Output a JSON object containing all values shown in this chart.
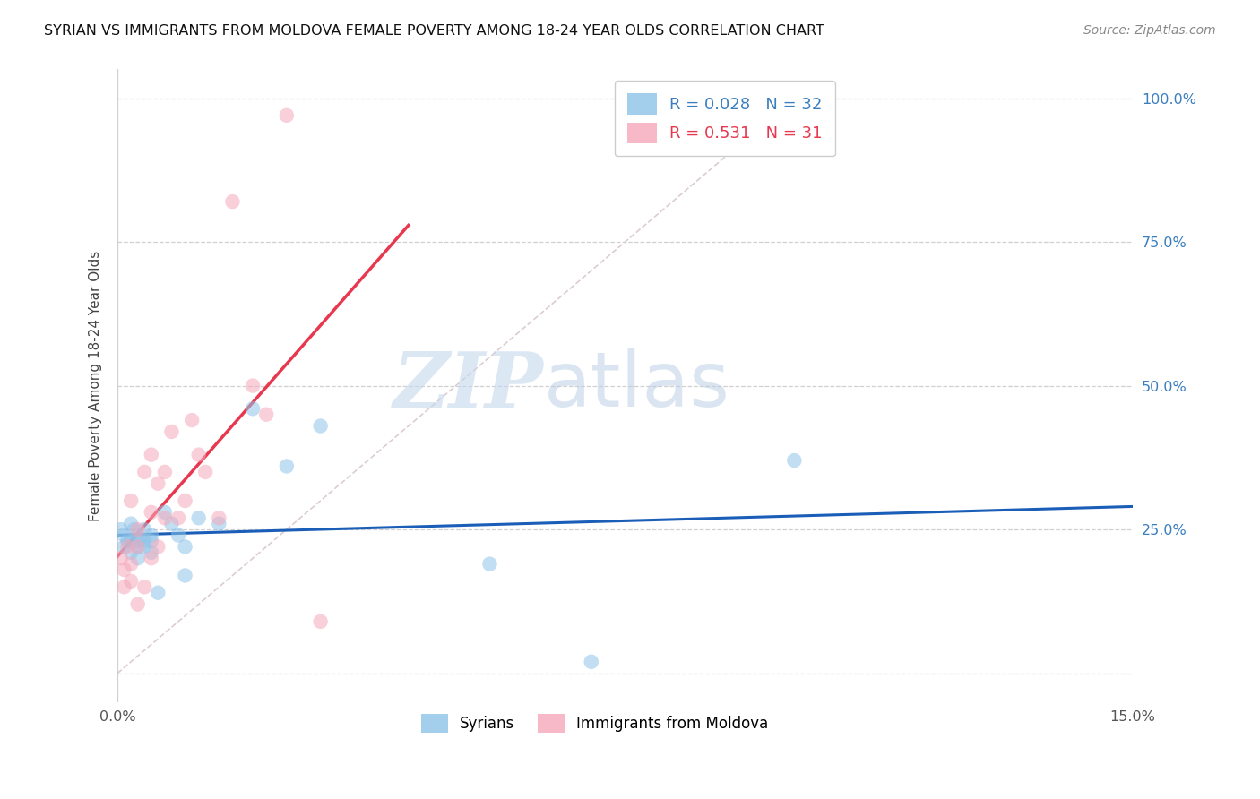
{
  "title": "SYRIAN VS IMMIGRANTS FROM MOLDOVA FEMALE POVERTY AMONG 18-24 YEAR OLDS CORRELATION CHART",
  "source": "Source: ZipAtlas.com",
  "ylabel": "Female Poverty Among 18-24 Year Olds",
  "xlim": [
    0.0,
    0.15
  ],
  "ylim": [
    -0.05,
    1.05
  ],
  "watermark_zip": "ZIP",
  "watermark_atlas": "atlas",
  "blue_color": "#8ec3e8",
  "pink_color": "#f5a8bb",
  "blue_line_color": "#1a5eb8",
  "pink_line_color": "#e8384f",
  "dot_size": 140,
  "alpha": 0.55,
  "syrians_x": [
    0.0005,
    0.001,
    0.001,
    0.0015,
    0.002,
    0.002,
    0.002,
    0.0025,
    0.003,
    0.003,
    0.003,
    0.003,
    0.004,
    0.004,
    0.004,
    0.005,
    0.005,
    0.005,
    0.006,
    0.007,
    0.008,
    0.009,
    0.01,
    0.01,
    0.012,
    0.015,
    0.02,
    0.025,
    0.03,
    0.055,
    0.07,
    0.1
  ],
  "syrians_y": [
    0.25,
    0.24,
    0.22,
    0.23,
    0.26,
    0.23,
    0.21,
    0.25,
    0.24,
    0.23,
    0.22,
    0.2,
    0.25,
    0.23,
    0.22,
    0.24,
    0.23,
    0.21,
    0.14,
    0.28,
    0.26,
    0.24,
    0.22,
    0.17,
    0.27,
    0.26,
    0.46,
    0.36,
    0.43,
    0.19,
    0.02,
    0.37
  ],
  "moldova_x": [
    0.0005,
    0.001,
    0.001,
    0.0015,
    0.002,
    0.002,
    0.002,
    0.003,
    0.003,
    0.003,
    0.004,
    0.004,
    0.005,
    0.005,
    0.005,
    0.006,
    0.006,
    0.007,
    0.007,
    0.008,
    0.009,
    0.01,
    0.011,
    0.012,
    0.013,
    0.015,
    0.017,
    0.02,
    0.022,
    0.025,
    0.03
  ],
  "moldova_y": [
    0.2,
    0.18,
    0.15,
    0.22,
    0.3,
    0.19,
    0.16,
    0.25,
    0.22,
    0.12,
    0.35,
    0.15,
    0.38,
    0.28,
    0.2,
    0.33,
    0.22,
    0.35,
    0.27,
    0.42,
    0.27,
    0.3,
    0.44,
    0.38,
    0.35,
    0.27,
    0.82,
    0.5,
    0.45,
    0.97,
    0.09
  ],
  "ytick_vals": [
    0.0,
    0.25,
    0.5,
    0.75,
    1.0
  ],
  "ytick_labels": [
    "",
    "25.0%",
    "50.0%",
    "75.0%",
    "100.0%"
  ],
  "xtick_vals": [
    0.0,
    0.05,
    0.1,
    0.15
  ],
  "xtick_labels": [
    "0.0%",
    "",
    "",
    "15.0%"
  ],
  "right_yaxis_color": "#3a7ebf",
  "grid_color": "#d0d0d0",
  "diag_color": "#d8c8c8",
  "legend_R_blue": "R = 0.028",
  "legend_N_blue": "N = 32",
  "legend_R_pink": "R = 0.531",
  "legend_N_pink": "N = 31",
  "legend_label_blue": "Syrians",
  "legend_label_pink": "Immigrants from Moldova"
}
